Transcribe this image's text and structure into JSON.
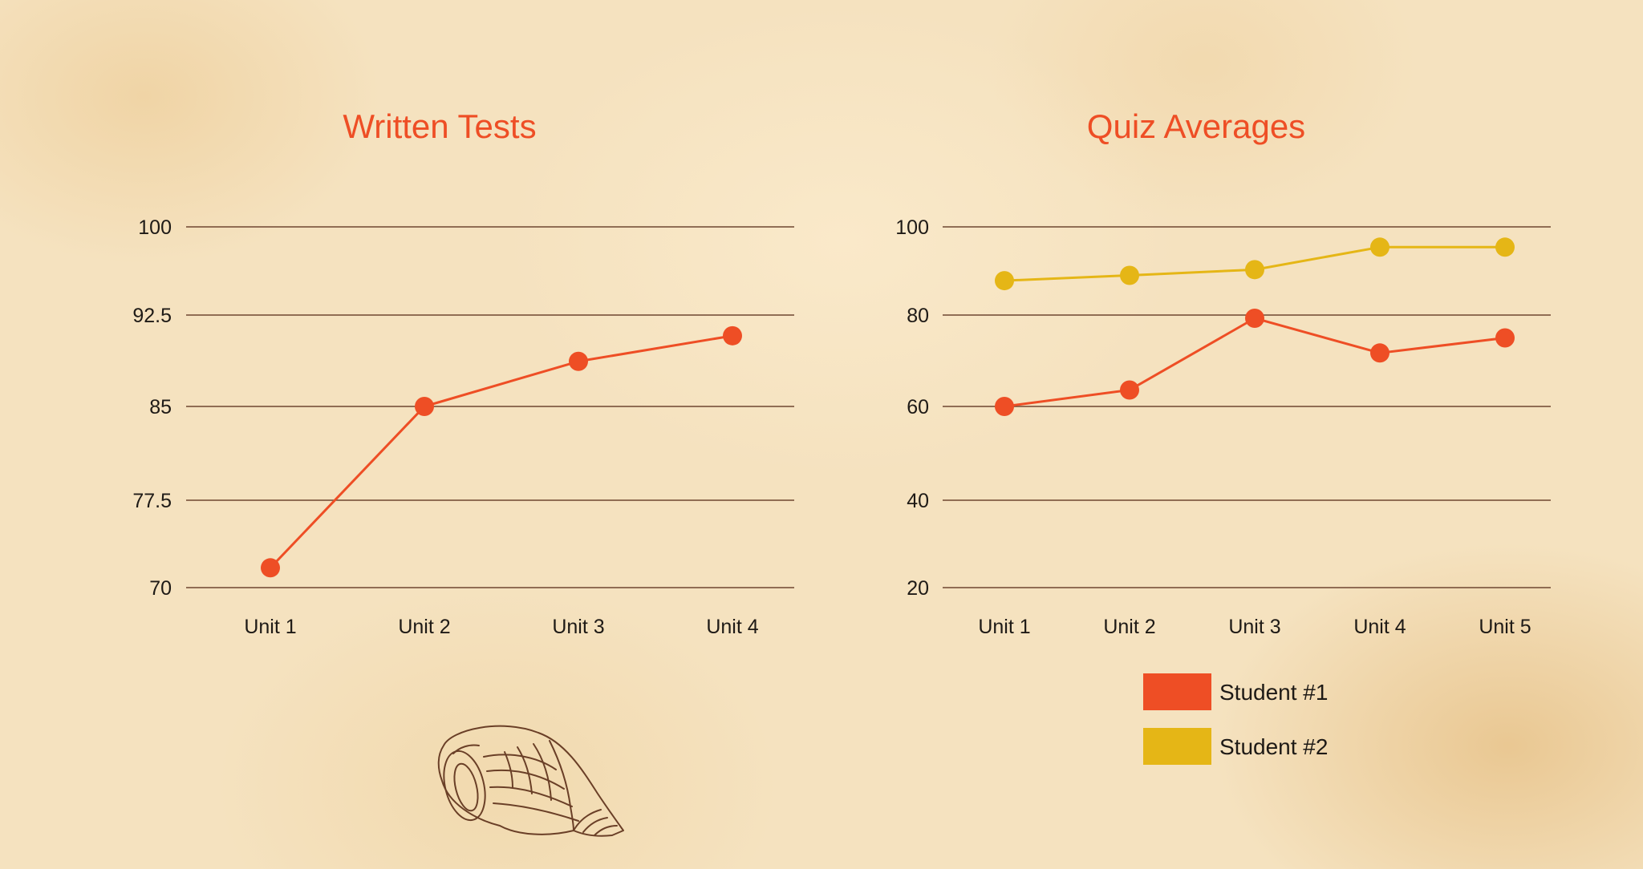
{
  "chart_data": [
    {
      "type": "line",
      "title": "Written Tests",
      "xlabel": "",
      "ylabel": "",
      "categories": [
        "Unit 1",
        "Unit 2",
        "Unit 3",
        "Unit 4"
      ],
      "yticks": [
        "70",
        "77.5",
        "85",
        "92.5",
        "100"
      ],
      "ylim": [
        70,
        100
      ],
      "grid": true,
      "series": [
        {
          "values": [
            71.7,
            85,
            88.7,
            90.8
          ],
          "color": "#ee4e25"
        }
      ]
    },
    {
      "type": "line",
      "title": "Quiz Averages",
      "xlabel": "",
      "ylabel": "",
      "categories": [
        "Unit 1",
        "Unit 2",
        "Unit 3",
        "Unit 4",
        "Unit 5"
      ],
      "yticks": [
        "20",
        "40",
        "60",
        "80",
        "100"
      ],
      "ylim": [
        20,
        100
      ],
      "grid": true,
      "legend_position": "bottom-right",
      "series": [
        {
          "name": "Student #1",
          "values": [
            60,
            63.6,
            79.3,
            71.7,
            75
          ],
          "color": "#ee4e25"
        },
        {
          "name": "Student #2",
          "values": [
            87.8,
            89,
            90.3,
            95.4,
            95.4
          ],
          "color": "#e5b616"
        }
      ]
    }
  ],
  "decoration": {
    "illustration": "seashell-icon",
    "background": "parchment"
  },
  "colors": {
    "accent": "#ee4e25",
    "secondary": "#e5b616",
    "grid": "#6e4631",
    "text": "#1e1a16",
    "background": "#f5e2bf"
  }
}
